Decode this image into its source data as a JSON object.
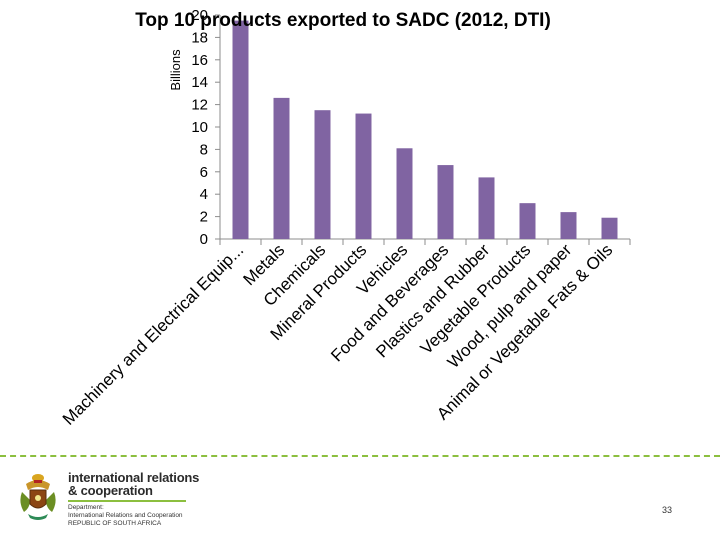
{
  "chart_data": {
    "type": "bar",
    "title": "Top 10 products exported to SADC (2012, DTI)",
    "ylabel": "Billions",
    "xlabel": "",
    "ylim": [
      0,
      20
    ],
    "yticks": [
      "0",
      "2",
      "4",
      "6",
      "8",
      "10",
      "12",
      "14",
      "16",
      "18",
      "20"
    ],
    "categories": [
      "Machinery and Electrical Equip...",
      "Metals",
      "Chemicals",
      "Mineral Products",
      "Vehicles",
      "Food and Beverages",
      "Plastics and Rubber",
      "Vegetable Products",
      "Wood, pulp and paper",
      "Animal or Vegetable Fats & Oils"
    ],
    "values": [
      19.5,
      12.6,
      11.5,
      11.2,
      8.1,
      6.6,
      5.5,
      3.2,
      2.4,
      1.9
    ],
    "bar_color": "#8064a2",
    "grid": false,
    "legend": "none"
  },
  "footer": {
    "brand_line1": "international relations",
    "brand_line2": "& cooperation",
    "dept_line1": "Department:",
    "dept_line2": "International Relations and Cooperation",
    "dept_line3": "REPUBLIC OF SOUTH AFRICA",
    "crest_icon": "coat-of-arms-icon",
    "page_number": "33",
    "accent_color": "#8cbf3f"
  }
}
